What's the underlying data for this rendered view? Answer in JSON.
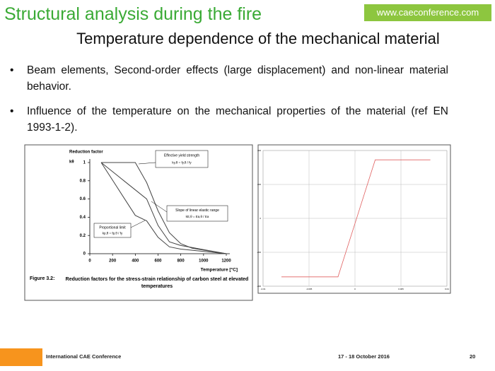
{
  "header": {
    "title": "Structural analysis during the fire",
    "website": "www.caeconference.com",
    "subtitle": "Temperature dependence of the mechanical material"
  },
  "bullets": [
    "Beam elements, Second-order effects (large displacement) and non-linear material behavior.",
    "Influence of the temperature on the mechanical properties of the material (ref EN 1993-1-2)."
  ],
  "chart_data": [
    {
      "type": "line",
      "y_label": "Reduction factor",
      "y_symbol": "kθ",
      "x_label": "Temperature [°C]",
      "caption_number": "Figure 3.2:",
      "caption": "Reduction factors for the stress-strain relationship of carbon steel at elevated temperatures",
      "x": [
        100,
        200,
        300,
        400,
        500,
        600,
        700,
        800,
        900,
        1000,
        1100,
        1200
      ],
      "series": [
        {
          "name": "Effective yield strength",
          "formula": "ky,θ = fy,θ / fy",
          "color": "#444444",
          "values": [
            1,
            1,
            1,
            1,
            0.78,
            0.47,
            0.23,
            0.11,
            0.06,
            0.04,
            0.02,
            0
          ]
        },
        {
          "name": "Slope of linear elastic range",
          "formula": "kE,θ = Ea,θ / Ea",
          "color": "#444444",
          "values": [
            1,
            0.9,
            0.8,
            0.7,
            0.6,
            0.31,
            0.13,
            0.09,
            0.0675,
            0.045,
            0.0225,
            0
          ]
        },
        {
          "name": "Proportional limit",
          "formula": "kp,θ = fp,θ / fy",
          "color": "#444444",
          "values": [
            1,
            0.807,
            0.613,
            0.42,
            0.36,
            0.18,
            0.075,
            0.05,
            0.0375,
            0.025,
            0.0125,
            0
          ]
        }
      ],
      "xlim": [
        0,
        1200
      ],
      "xticks": [
        0,
        200,
        400,
        600,
        800,
        1000,
        1200
      ],
      "ylim": [
        0,
        1
      ],
      "yticks": [
        0,
        0.2,
        0.4,
        0.6,
        0.8,
        1
      ],
      "grid": false
    },
    {
      "type": "line",
      "x": [
        -0.008,
        -0.00185,
        0.0022,
        0.0082
      ],
      "series": [
        {
          "color": "#e06060",
          "values": [
            -345,
            -345,
            345,
            345
          ]
        }
      ],
      "xlim": [
        -0.01,
        0.01
      ],
      "xticks": [
        -0.01,
        -0.005,
        0,
        0.005,
        0.01
      ],
      "ylim": [
        -400,
        400
      ],
      "yticks": [
        -400,
        -200,
        0,
        200,
        400
      ],
      "grid": true
    }
  ],
  "footer": {
    "conference": "International CAE Conference",
    "date": "17 - 18 October 2016",
    "page": "20"
  }
}
